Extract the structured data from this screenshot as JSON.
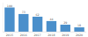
{
  "chart_data": {
    "type": "bar",
    "categories": [
      "2015",
      "2016",
      "2017",
      "2018",
      "2019",
      "2020"
    ],
    "values": [
      100,
      73,
      62,
      44,
      29,
      18
    ],
    "color": "#4a8fcb",
    "ylim": [
      0,
      120
    ],
    "grid": false,
    "data_labels": true,
    "tick_labels": "x"
  }
}
